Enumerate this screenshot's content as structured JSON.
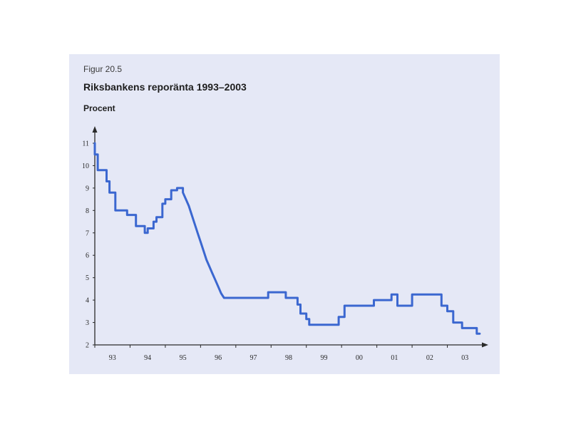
{
  "figure": {
    "label": "Figur 20.5",
    "title": "Riksbankens reporänta 1993–2003",
    "y_unit": "Procent"
  },
  "chart_data": {
    "type": "line",
    "title": "Riksbankens reporänta 1993–2003",
    "ylabel": "Procent",
    "xlabel": "",
    "ylim": [
      2,
      11
    ],
    "xlim": [
      1993,
      2004
    ],
    "grid": false,
    "line_color": "#3b67d0",
    "y_ticks": [
      "2",
      "3",
      "4",
      "5",
      "6",
      "7",
      "8",
      "9",
      "10",
      "11"
    ],
    "x_ticks": [
      "93",
      "94",
      "95",
      "96",
      "97",
      "98",
      "99",
      "00",
      "01",
      "02",
      "03"
    ],
    "series": [
      {
        "name": "",
        "x": [
          "1993-01",
          "1993-01",
          "1993-02",
          "1993-02",
          "1993-05",
          "1993-05",
          "1993-06",
          "1993-06",
          "1993-08",
          "1993-08",
          "1993-12",
          "1993-12",
          "1994-03",
          "1994-03",
          "1994-06",
          "1994-06",
          "1994-07",
          "1994-07",
          "1994-09",
          "1994-09",
          "1994-10",
          "1994-10",
          "1994-12",
          "1994-12",
          "1995-01",
          "1995-01",
          "1995-03",
          "1995-03",
          "1995-05",
          "1995-05",
          "1995-07",
          "1995-07",
          "1995-08",
          "1995-09",
          "1995-10",
          "1995-11",
          "1995-12",
          "1996-01",
          "1996-02",
          "1996-03",
          "1996-04",
          "1996-05",
          "1996-06",
          "1996-07",
          "1996-08",
          "1996-09",
          "1996-10",
          "1996-11",
          "1996-12",
          "1996-12",
          "1997-12",
          "1997-12",
          "1998-06",
          "1998-06",
          "1998-10",
          "1998-10",
          "1998-11",
          "1998-11",
          "1999-01",
          "1999-01",
          "1999-02",
          "1999-02",
          "1999-04",
          "1999-04",
          "1999-12",
          "1999-12",
          "2000-02",
          "2000-02",
          "2000-12",
          "2000-12",
          "2001-06",
          "2001-06",
          "2001-08",
          "2001-08",
          "2002-01",
          "2002-01",
          "2002-04",
          "2002-04",
          "2002-11",
          "2002-11",
          "2003-01",
          "2003-01",
          "2003-03",
          "2003-03",
          "2003-06",
          "2003-06",
          "2003-11",
          "2003-11",
          "2003-12"
        ],
        "y": [
          11.0,
          10.5,
          10.5,
          9.8,
          9.8,
          9.3,
          9.3,
          8.8,
          8.8,
          8.0,
          8.0,
          7.8,
          7.8,
          7.3,
          7.3,
          7.0,
          7.0,
          7.2,
          7.2,
          7.5,
          7.5,
          7.7,
          7.7,
          8.3,
          8.3,
          8.5,
          8.5,
          8.9,
          8.9,
          9.0,
          9.0,
          8.8,
          8.5,
          8.2,
          7.8,
          7.4,
          7.0,
          6.6,
          6.2,
          5.8,
          5.5,
          5.2,
          4.9,
          4.6,
          4.3,
          4.1,
          4.1,
          4.1,
          4.1,
          4.1,
          4.1,
          4.35,
          4.35,
          4.1,
          4.1,
          3.8,
          3.8,
          3.4,
          3.4,
          3.15,
          3.15,
          2.9,
          2.9,
          2.9,
          2.9,
          3.25,
          3.25,
          3.75,
          3.75,
          4.0,
          4.0,
          4.25,
          4.25,
          3.75,
          3.75,
          4.25,
          4.25,
          4.25,
          4.25,
          3.75,
          3.75,
          3.5,
          3.5,
          3.0,
          3.0,
          2.75,
          2.75,
          2.5,
          2.5
        ]
      }
    ]
  }
}
